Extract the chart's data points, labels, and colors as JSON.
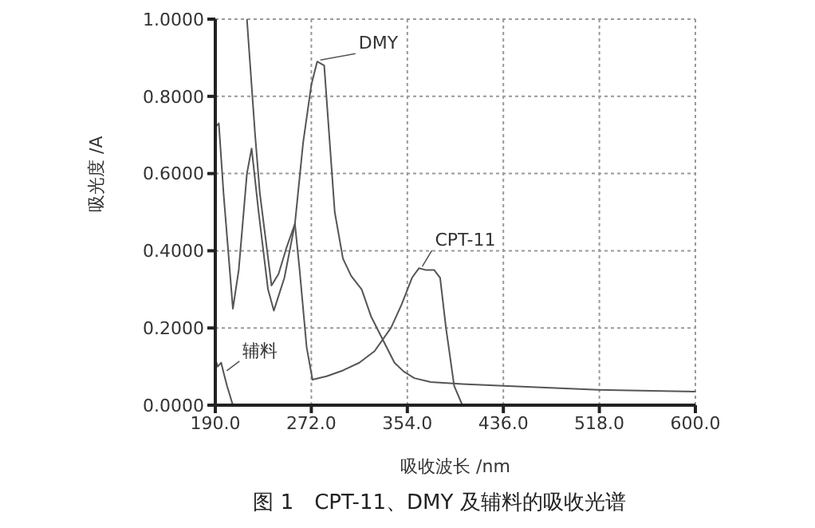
{
  "chart_data": {
    "type": "line",
    "title": "图 1　CPT-11、DMY 及辅料的吸收光谱",
    "xlabel": "吸收波长 /nm",
    "ylabel": "吸光度 /A",
    "xlim": [
      190,
      600
    ],
    "xticks": [
      {
        "value": 190,
        "label": "190.0"
      },
      {
        "value": 272,
        "label": "272.0"
      },
      {
        "value": 354,
        "label": "354.0"
      },
      {
        "value": 436,
        "label": "436.0"
      },
      {
        "value": 518,
        "label": "518.0"
      },
      {
        "value": 600,
        "label": "600.0"
      }
    ],
    "ylim": [
      0,
      1
    ],
    "yticks": [
      {
        "value": 0,
        "label": "0.0000"
      },
      {
        "value": 0.2,
        "label": "0.2000"
      },
      {
        "value": 0.4,
        "label": "0.4000"
      },
      {
        "value": 0.6,
        "label": "0.6000"
      },
      {
        "value": 0.8,
        "label": "0.8000"
      },
      {
        "value": 1,
        "label": "1.0000"
      }
    ],
    "grid": true,
    "legend": false,
    "marker": "none",
    "line_style": "solid",
    "series": [
      {
        "name": "DMY",
        "color": "#555555",
        "x": [
          190,
          193,
          197,
          205,
          210,
          217,
          221,
          227,
          235,
          240,
          249,
          258,
          265,
          272,
          277,
          283,
          292,
          299,
          306,
          315,
          323,
          333,
          343,
          351,
          360,
          374,
          401,
          436,
          517,
          600
        ],
        "values": [
          0.72,
          0.73,
          0.55,
          0.25,
          0.35,
          0.6,
          0.665,
          0.5,
          0.3,
          0.245,
          0.33,
          0.47,
          0.68,
          0.83,
          0.89,
          0.88,
          0.5,
          0.38,
          0.335,
          0.3,
          0.23,
          0.17,
          0.11,
          0.087,
          0.07,
          0.06,
          0.055,
          0.05,
          0.04,
          0.035
        ]
      },
      {
        "name": "CPT-11",
        "color": "#555555",
        "x": [
          217,
          224,
          228,
          238,
          244,
          251,
          258,
          262,
          268,
          273,
          285,
          299,
          313,
          326,
          340,
          349,
          358,
          364,
          370,
          377,
          382,
          387,
          394,
          401
        ],
        "values": [
          1,
          0.7,
          0.55,
          0.31,
          0.34,
          0.41,
          0.47,
          0.35,
          0.15,
          0.066,
          0.075,
          0.09,
          0.11,
          0.14,
          0.2,
          0.26,
          0.33,
          0.355,
          0.35,
          0.35,
          0.33,
          0.2,
          0.05,
          0
        ]
      },
      {
        "name": "辅料",
        "color": "#555555",
        "x": [
          190,
          192,
          195,
          197,
          200,
          205
        ],
        "values": [
          0.12,
          0.1,
          0.11,
          0.085,
          0.05,
          0
        ]
      }
    ]
  }
}
